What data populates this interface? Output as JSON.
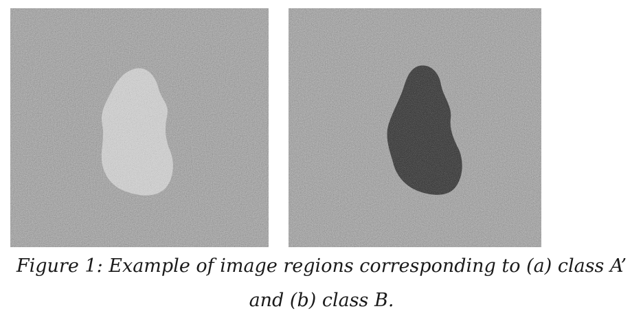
{
  "figure": {
    "caption_line_1": "Figure 1: Example of image regions corresponding to (a) class A’",
    "caption_line_2": "and (b) class B."
  },
  "colors": {
    "background_noise": "#8f8f8f",
    "region_a_tone": "#d9d9d9",
    "region_b_tone": "#1f1f1f"
  }
}
